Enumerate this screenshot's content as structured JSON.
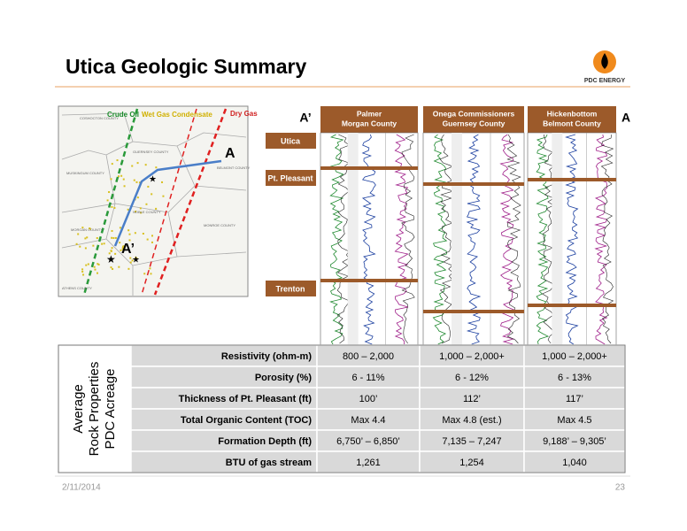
{
  "header": {
    "title": "Utica Geologic Summary",
    "logo": "PDC ENERGY"
  },
  "map": {
    "zones": [
      "Crude Oil",
      "Wet Gas Condensate",
      "Dry Gas"
    ],
    "points": [
      "A",
      "A’"
    ],
    "counties": [
      "COSHOCTON COUNTY",
      "MUSKINGUM COUNTY",
      "GUERNSEY COUNTY",
      "BELMONT COUNTY",
      "NOBLE COUNTY",
      "MONROE COUNTY",
      "MORGAN COUNTY",
      "ATHENS COUNTY"
    ]
  },
  "cross_section": {
    "start": "A’",
    "end": "A",
    "wells": [
      [
        "Palmer",
        "Morgan County"
      ],
      [
        "Onega Commissioners",
        "Guernsey County"
      ],
      [
        "Hickenbottom",
        "Belmont County"
      ]
    ],
    "formations": [
      "Utica",
      "Pt. Pleasant",
      "Trenton"
    ]
  },
  "table": {
    "side_label": [
      "Average",
      "Rock Properties",
      "PDC Acreage"
    ],
    "rows": [
      [
        "Resistivity  (ohm-m)",
        "800 – 2,000",
        "1,000 – 2,000+",
        "1,000 – 2,000+"
      ],
      [
        "Porosity  (%)",
        "6 - 11%",
        "6 - 12%",
        "6 - 13%"
      ],
      [
        "Thickness of Pt. Pleasant  (ft)",
        "100’",
        "112’",
        "117’"
      ],
      [
        "Total Organic Content (TOC)",
        "Max 4.4",
        "Max 4.8 (est.)",
        "Max 4.5"
      ],
      [
        "Formation Depth (ft)",
        "6,750’ – 6,850’",
        "7,135 – 7,247",
        "9,188’ – 9,305’"
      ],
      [
        "BTU of gas stream",
        "1,261",
        "1,254",
        "1,040"
      ]
    ]
  },
  "footer": {
    "date": "2/11/2014",
    "page": "23"
  }
}
